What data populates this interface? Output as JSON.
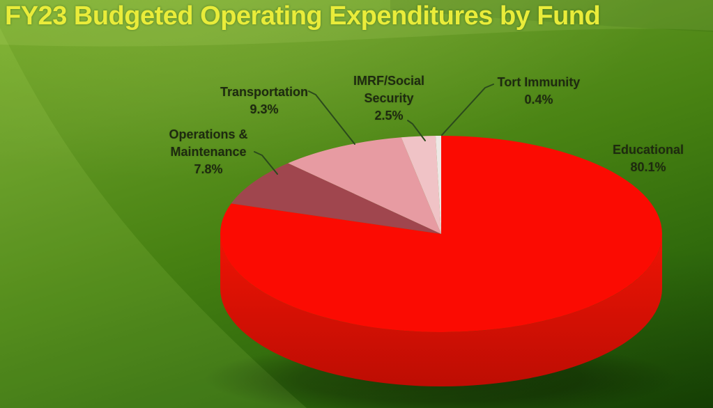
{
  "slide": {
    "title": "FY23 Budgeted Operating Expenditures by Fund",
    "title_color": "#e9ec3a",
    "label_color": "#1e2a10",
    "leader_line_color": "#2b4a1c",
    "background_greens": [
      "#70a626",
      "#478112",
      "#1d4d05"
    ]
  },
  "chart_data": {
    "type": "pie",
    "style": "3d",
    "title": "FY23 Budgeted Operating Expenditures by Fund",
    "unit": "%",
    "start_angle_deg": 0,
    "direction": "clockwise",
    "legend_position": "none",
    "labels_show_name_and_percent": true,
    "slices": [
      {
        "label": "Educational",
        "value": 80.1,
        "display": "80.1%",
        "color": "#fb0b02"
      },
      {
        "label": "Operations & Maintenance",
        "value": 7.8,
        "display": "7.8%",
        "color": "#a0464e"
      },
      {
        "label": "Transportation",
        "value": 9.3,
        "display": "9.3%",
        "color": "#e79ba2"
      },
      {
        "label": "IMRF/Social Security",
        "value": 2.5,
        "display": "2.5%",
        "color": "#f0c3c6"
      },
      {
        "label": "Tort Immunity",
        "value": 0.4,
        "display": "0.4%",
        "color": "#eee8e5"
      }
    ],
    "side_color_top": "#ef1405",
    "side_color_bottom": "#bd0d03"
  },
  "callouts": {
    "om": {
      "lines": [
        "Operations &",
        "Maintenance",
        "7.8%"
      ]
    },
    "transportation": {
      "lines": [
        "Transportation",
        "9.3%"
      ]
    },
    "imrf": {
      "lines": [
        "IMRF/Social",
        "Security",
        "2.5%"
      ]
    },
    "tort": {
      "lines": [
        "Tort Immunity",
        "0.4%"
      ]
    },
    "educational": {
      "lines": [
        "Educational",
        "80.1%"
      ]
    }
  }
}
